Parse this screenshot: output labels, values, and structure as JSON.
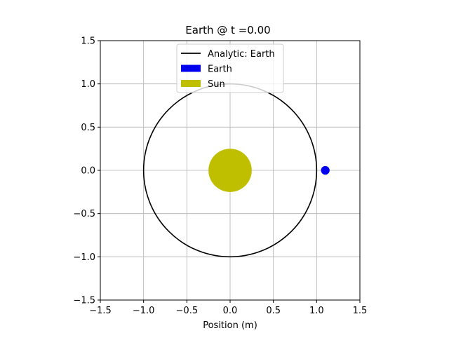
{
  "chart_data": {
    "type": "scatter",
    "title": "Earth @ t =0.00",
    "xlabel": "Position (m)",
    "ylabel": "",
    "xlim": [
      -1.5,
      1.5
    ],
    "ylim": [
      -1.5,
      1.5
    ],
    "x_ticks": [
      -1.5,
      -1.0,
      -0.5,
      0.0,
      0.5,
      1.0,
      1.5
    ],
    "y_ticks": [
      -1.5,
      -1.0,
      -0.5,
      0.0,
      0.5,
      1.0,
      1.5
    ],
    "x_tick_labels": [
      "−1.5",
      "−1.0",
      "−0.5",
      "0.0",
      "0.5",
      "1.0",
      "1.5"
    ],
    "y_tick_labels": [
      "−1.5",
      "−1.0",
      "−0.5",
      "0.0",
      "0.5",
      "1.0",
      "1.5"
    ],
    "grid": true,
    "legend_position": "top-center",
    "series": [
      {
        "name": "Analytic: Earth",
        "kind": "circle-line",
        "center": [
          0,
          0
        ],
        "radius": 1.0,
        "color": "#000000"
      },
      {
        "name": "Earth",
        "kind": "body",
        "x": 1.1,
        "y": 0.0,
        "radius": 0.05,
        "color": "#0000ee"
      },
      {
        "name": "Sun",
        "kind": "body",
        "x": 0.0,
        "y": 0.0,
        "radius": 0.25,
        "color": "#bfbf00"
      }
    ]
  }
}
